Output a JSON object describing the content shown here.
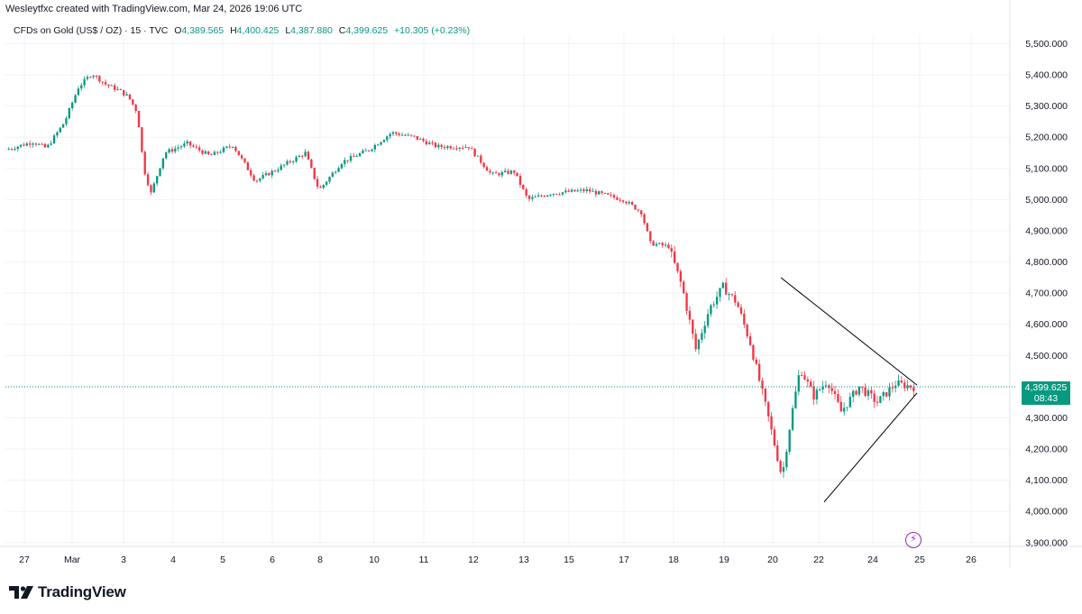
{
  "header": {
    "attribution": "Wesleytfxc created with TradingView.com, Mar 24, 2026 19:06 UTC"
  },
  "legend": {
    "symbol": "CFDs on Gold (US$ / OZ) · 15 · TVC",
    "open_label": "O",
    "open": "4,389.565",
    "high_label": "H",
    "high": "4,400.425",
    "low_label": "L",
    "low": "4,387.880",
    "close_label": "C",
    "close": "4,399.625",
    "change": "+10.305 (+0.23%)"
  },
  "price_tag": {
    "price": "4,399.625",
    "countdown": "08:43"
  },
  "brand": {
    "name": "TradingView"
  },
  "colors": {
    "up": "#089981",
    "down": "#f23645",
    "grid": "#f0f3fa",
    "price_line": "#089981",
    "pattern": "#000000",
    "lightning": "#9c27b0"
  },
  "icons": {
    "logo": "tradingview-logo-icon",
    "event": "lightning-icon"
  },
  "chart_data": {
    "type": "candlestick",
    "title": "CFDs on Gold (US$ / OZ) · 15 · TVC",
    "timeframe": "15",
    "y_ticks": [
      3900,
      4000,
      4100,
      4200,
      4300,
      4400,
      4500,
      4600,
      4700,
      4800,
      4900,
      5000,
      5100,
      5200,
      5300,
      5400,
      5500
    ],
    "y_tick_labels": [
      "3,900.000",
      "4,000.000",
      "4,100.000",
      "4,200.000",
      "4,300.000",
      "4,400.000",
      "4,500.000",
      "4,600.000",
      "4,700.000",
      "4,800.000",
      "4,900.000",
      "5,000.000",
      "5,100.000",
      "5,200.000",
      "5,300.000",
      "5,400.000",
      "5,500.000"
    ],
    "ylim": [
      3880,
      5530
    ],
    "x_tick_labels": [
      "27",
      "Mar",
      "3",
      "4",
      "5",
      "6",
      "8",
      "10",
      "11",
      "12",
      "13",
      "15",
      "17",
      "18",
      "19",
      "20",
      "22",
      "24",
      "25",
      "26"
    ],
    "grid": true,
    "last_price": 4399.625,
    "price_path_approx": [
      {
        "t": 0,
        "p": 5160
      },
      {
        "t": 0.03,
        "p": 5185
      },
      {
        "t": 0.045,
        "p": 5165
      },
      {
        "t": 0.065,
        "p": 5250
      },
      {
        "t": 0.08,
        "p": 5360
      },
      {
        "t": 0.095,
        "p": 5405
      },
      {
        "t": 0.11,
        "p": 5370
      },
      {
        "t": 0.125,
        "p": 5350
      },
      {
        "t": 0.135,
        "p": 5330
      },
      {
        "t": 0.145,
        "p": 5280
      },
      {
        "t": 0.152,
        "p": 5100
      },
      {
        "t": 0.16,
        "p": 5020
      },
      {
        "t": 0.175,
        "p": 5150
      },
      {
        "t": 0.2,
        "p": 5180
      },
      {
        "t": 0.225,
        "p": 5140
      },
      {
        "t": 0.25,
        "p": 5175
      },
      {
        "t": 0.275,
        "p": 5060
      },
      {
        "t": 0.3,
        "p": 5100
      },
      {
        "t": 0.33,
        "p": 5150
      },
      {
        "t": 0.345,
        "p": 5030
      },
      {
        "t": 0.37,
        "p": 5120
      },
      {
        "t": 0.4,
        "p": 5160
      },
      {
        "t": 0.425,
        "p": 5215
      },
      {
        "t": 0.45,
        "p": 5200
      },
      {
        "t": 0.475,
        "p": 5170
      },
      {
        "t": 0.51,
        "p": 5170
      },
      {
        "t": 0.535,
        "p": 5080
      },
      {
        "t": 0.56,
        "p": 5090
      },
      {
        "t": 0.575,
        "p": 5000
      },
      {
        "t": 0.6,
        "p": 5020
      },
      {
        "t": 0.64,
        "p": 5030
      },
      {
        "t": 0.68,
        "p": 5000
      },
      {
        "t": 0.7,
        "p": 4960
      },
      {
        "t": 0.71,
        "p": 4860
      },
      {
        "t": 0.73,
        "p": 4850
      },
      {
        "t": 0.745,
        "p": 4720
      },
      {
        "t": 0.76,
        "p": 4520
      },
      {
        "t": 0.775,
        "p": 4650
      },
      {
        "t": 0.79,
        "p": 4720
      },
      {
        "t": 0.805,
        "p": 4670
      },
      {
        "t": 0.82,
        "p": 4540
      },
      {
        "t": 0.84,
        "p": 4300
      },
      {
        "t": 0.855,
        "p": 4110
      },
      {
        "t": 0.865,
        "p": 4300
      },
      {
        "t": 0.875,
        "p": 4460
      },
      {
        "t": 0.89,
        "p": 4370
      },
      {
        "t": 0.905,
        "p": 4420
      },
      {
        "t": 0.92,
        "p": 4320
      },
      {
        "t": 0.94,
        "p": 4400
      },
      {
        "t": 0.96,
        "p": 4350
      },
      {
        "t": 0.98,
        "p": 4410
      },
      {
        "t": 1.0,
        "p": 4399.625
      }
    ],
    "annotations": [
      {
        "type": "trendline",
        "from": {
          "x_label": "20",
          "price": 4750
        },
        "to": {
          "x_label": "25",
          "price": 4405
        }
      },
      {
        "type": "trendline",
        "from": {
          "x_label": "22",
          "price": 4030
        },
        "to": {
          "x_label": "25",
          "price": 4380
        }
      }
    ]
  }
}
